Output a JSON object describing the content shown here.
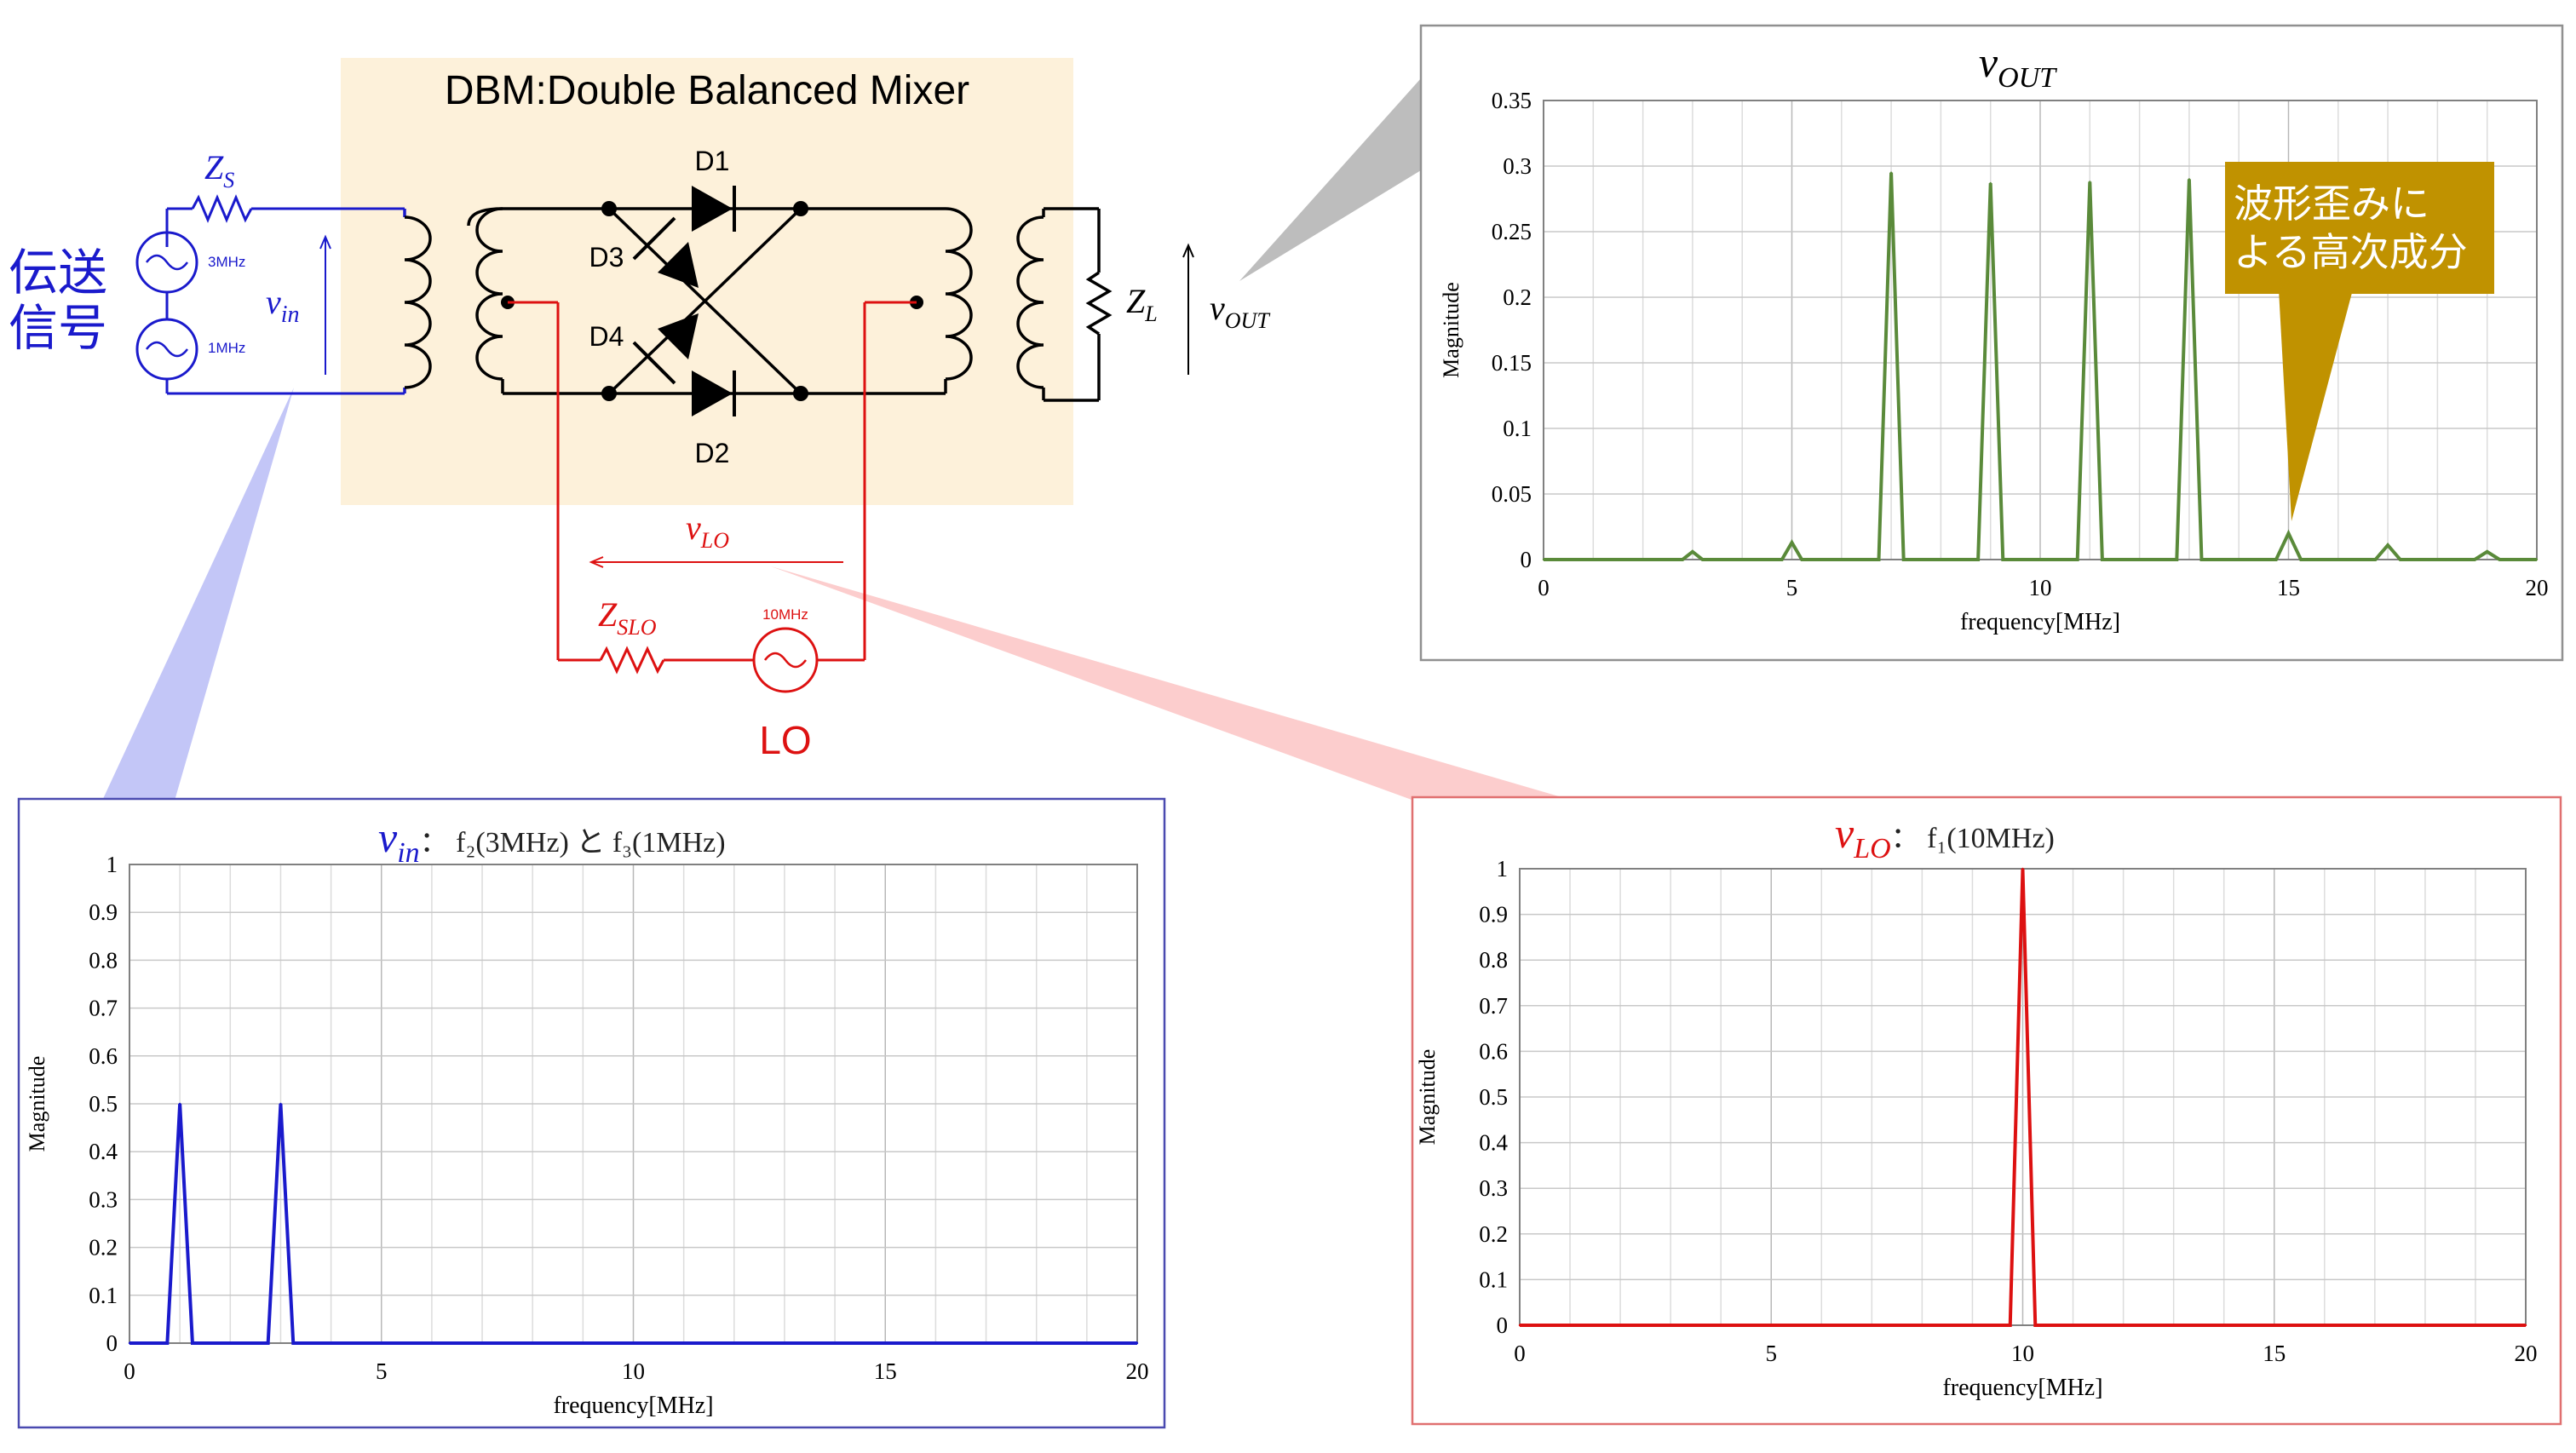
{
  "circuit": {
    "title": "DBM:Double Balanced Mixer",
    "diode_labels": [
      "D1",
      "D2",
      "D3",
      "D4"
    ],
    "zs_main": "Z",
    "zs_sub": "S",
    "zl_main": "Z",
    "zl_sub": "L",
    "zslo_main": "Z",
    "zslo_sub": "SLO",
    "vin_main": "v",
    "vin_sub": "in",
    "vout_main": "v",
    "vout_sub": "OUT",
    "vlo_main": "v",
    "vlo_sub": "LO",
    "source1_freq": "3MHz",
    "source2_freq": "1MHz",
    "lo_freq": "10MHz",
    "lo_label": "LO",
    "signal_label_line1": "伝送",
    "signal_label_line2": "信号",
    "distortion_callout_line1": "波形歪みに",
    "distortion_callout_line2": "よる高次成分",
    "colors": {
      "signal": "#1a1acc",
      "lo": "#dd1111",
      "wire": "#000000",
      "mixer_bg": "#fdf1da",
      "callout": "#c09200",
      "output": "#5a8a3a"
    }
  },
  "chart_data": [
    {
      "id": "vout",
      "type": "line",
      "title_main": "v",
      "title_sub": "OUT",
      "title_rest": "",
      "xlabel": "frequency[MHz]",
      "ylabel": "Magnitude",
      "xlim": [
        0,
        20
      ],
      "ylim": [
        0,
        0.35
      ],
      "xticks": [
        0,
        5,
        10,
        15,
        20
      ],
      "yticks": [
        0,
        0.05,
        0.1,
        0.15,
        0.2,
        0.25,
        0.3,
        0.35
      ],
      "ytick_labels": [
        "0",
        "0.05",
        "0.1",
        "0.15",
        "0.2",
        "0.25",
        "0.3",
        "0.35"
      ],
      "grid": true,
      "color": "#5a8a3a",
      "x": [
        0,
        2.8,
        3,
        3.2,
        4.8,
        5,
        5.2,
        6.75,
        7,
        7.25,
        8.75,
        9,
        9.25,
        10.75,
        11,
        11.25,
        12.75,
        13,
        13.25,
        14.75,
        15,
        15.25,
        16.75,
        17,
        17.25,
        18.75,
        19,
        19.25,
        20
      ],
      "y": [
        0,
        0,
        0.006,
        0,
        0,
        0.013,
        0,
        0,
        0.295,
        0,
        0,
        0.287,
        0,
        0,
        0.288,
        0,
        0,
        0.29,
        0,
        0,
        0.02,
        0,
        0,
        0.011,
        0,
        0,
        0.006,
        0,
        0
      ]
    },
    {
      "id": "vin",
      "type": "line",
      "title_main": "v",
      "title_sub": "in",
      "title_rest": "： f₂(3MHz) と f₃(1MHz)",
      "xlabel": "frequency[MHz]",
      "ylabel": "Magnitude",
      "xlim": [
        0,
        20
      ],
      "ylim": [
        0,
        1
      ],
      "xticks": [
        0,
        5,
        10,
        15,
        20
      ],
      "yticks": [
        0,
        0.1,
        0.2,
        0.3,
        0.4,
        0.5,
        0.6,
        0.7,
        0.8,
        0.9,
        1
      ],
      "ytick_labels": [
        "0",
        "0.1",
        "0.2",
        "0.3",
        "0.4",
        "0.5",
        "0.6",
        "0.7",
        "0.8",
        "0.9",
        "1"
      ],
      "grid": true,
      "color": "#1a1acc",
      "x": [
        0,
        0.75,
        1,
        1.25,
        2.75,
        3,
        3.25,
        20
      ],
      "y": [
        0,
        0,
        0.5,
        0,
        0,
        0.5,
        0,
        0
      ]
    },
    {
      "id": "vlo",
      "type": "line",
      "title_main": "v",
      "title_sub": "LO",
      "title_rest": "： f₁(10MHz)",
      "xlabel": "frequency[MHz]",
      "ylabel": "Magnitude",
      "xlim": [
        0,
        20
      ],
      "ylim": [
        0,
        1
      ],
      "xticks": [
        0,
        5,
        10,
        15,
        20
      ],
      "yticks": [
        0,
        0.1,
        0.2,
        0.3,
        0.4,
        0.5,
        0.6,
        0.7,
        0.8,
        0.9,
        1
      ],
      "ytick_labels": [
        "0",
        "0.1",
        "0.2",
        "0.3",
        "0.4",
        "0.5",
        "0.6",
        "0.7",
        "0.8",
        "0.9",
        "1"
      ],
      "grid": true,
      "color": "#dd1111",
      "x": [
        0,
        9.75,
        10,
        10.25,
        20
      ],
      "y": [
        0,
        0,
        1,
        0,
        0
      ]
    }
  ]
}
